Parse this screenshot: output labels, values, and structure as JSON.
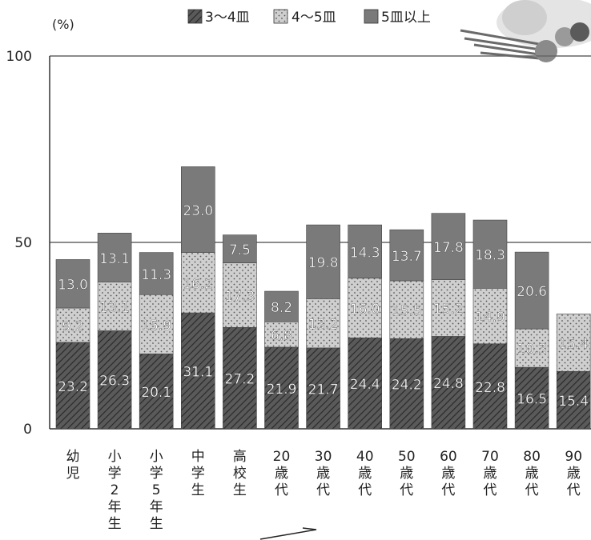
{
  "chart_data": {
    "type": "bar",
    "stacked": true,
    "ylabel": "(%)",
    "ylim": [
      0,
      100
    ],
    "yticks": [
      0,
      50,
      100
    ],
    "grid": true,
    "legend_position": "top",
    "categories": [
      "幼児",
      "小学2年生",
      "小学5年生",
      "中学生",
      "高校生",
      "20歳代",
      "30歳代",
      "40歳代",
      "50歳代",
      "60歳代",
      "70歳代",
      "80歳代",
      "90歳代"
    ],
    "series": [
      {
        "name": "3～4皿",
        "pattern": "hatch",
        "values": [
          23.2,
          26.3,
          20.1,
          31.1,
          27.2,
          21.9,
          21.7,
          24.4,
          24.2,
          24.8,
          22.8,
          16.5,
          15.4
        ]
      },
      {
        "name": "4～5皿",
        "pattern": "dots",
        "values": [
          9.2,
          13.1,
          15.9,
          16.2,
          17.3,
          6.8,
          13.2,
          16.0,
          15.5,
          15.2,
          14.9,
          10.3,
          15.4
        ]
      },
      {
        "name": "5皿以上",
        "pattern": "solid",
        "values": [
          13.0,
          13.1,
          11.3,
          23.0,
          7.5,
          8.2,
          19.8,
          14.3,
          13.7,
          17.8,
          18.3,
          20.6,
          null
        ]
      }
    ],
    "labels": [
      [
        "23.2",
        "26.3",
        "20.1",
        "31.1",
        "27.2",
        "21.9",
        "21.7",
        "24.4",
        "24.2",
        "24.8",
        "22.8",
        "16.5",
        "15.4"
      ],
      [
        "9.2",
        "13.1",
        "15.9",
        "16.2",
        "17.3",
        "6.8",
        "13.2",
        "16.0",
        "15.5",
        "15.2",
        "14.9",
        "10.3",
        "15.4"
      ],
      [
        "13.0",
        "13.1",
        "11.3",
        "23.0",
        "7.5",
        "8.2",
        "19.8",
        "14.3",
        "13.7",
        "17.8",
        "18.3",
        "20.6",
        null
      ]
    ],
    "colors": {
      "hatch": "#4a4a4a",
      "dots": "#bdbdbd",
      "solid": "#7a7a7a",
      "label": "#ffffff"
    }
  }
}
